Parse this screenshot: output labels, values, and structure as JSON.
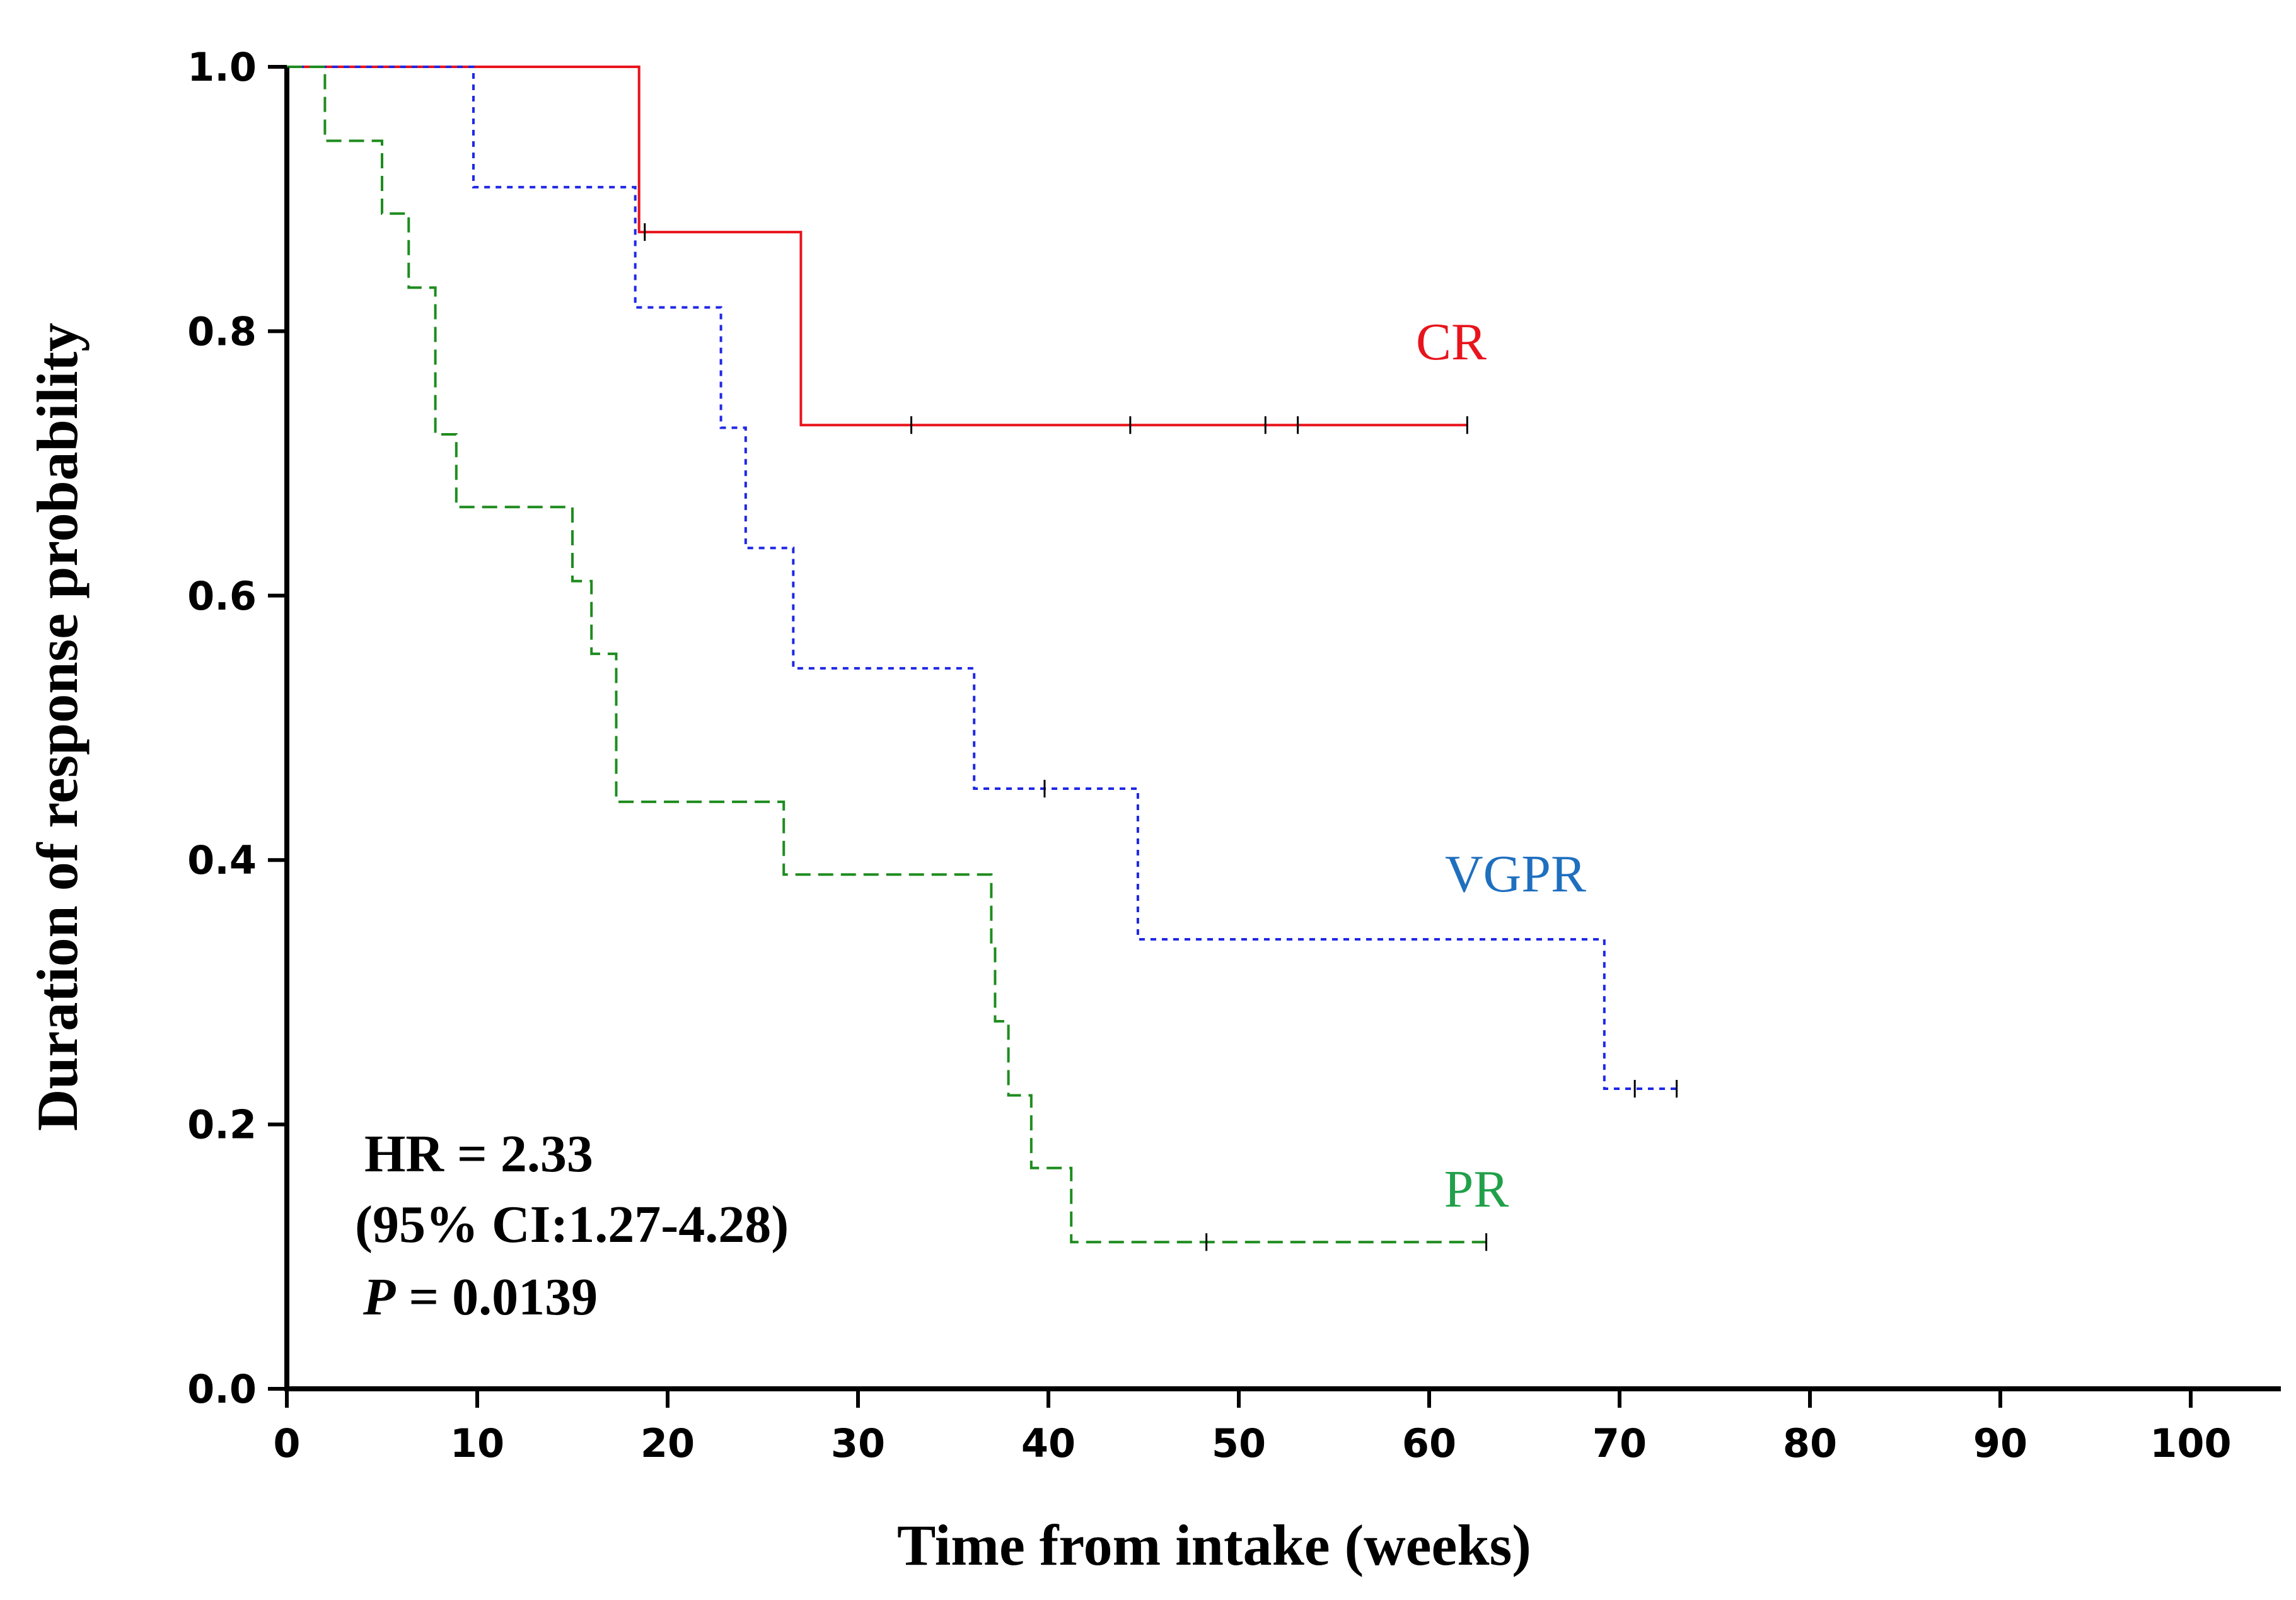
{
  "chart_data": {
    "type": "line",
    "subtype": "kaplan-meier step",
    "xlabel": "Time from intake (weeks)",
    "ylabel": "Duration of response probability",
    "xlim": [
      0,
      105
    ],
    "ylim": [
      0,
      1.0
    ],
    "x_ticks": [
      0,
      10,
      20,
      30,
      40,
      50,
      60,
      70,
      80,
      90,
      100
    ],
    "y_ticks": [
      0.0,
      0.2,
      0.4,
      0.6,
      0.8,
      1.0
    ],
    "y_tick_labels": [
      "0.0",
      "0.2",
      "0.4",
      "0.6",
      "0.8",
      "1.0"
    ],
    "grid": false,
    "legend": "inline labels",
    "series": [
      {
        "name": "CR",
        "color": "#e8141c",
        "line_style": "solid",
        "steps": [
          [
            0,
            1.0
          ],
          [
            18.5,
            0.875
          ],
          [
            27,
            0.729
          ]
        ],
        "end_x": 62,
        "censored": [
          [
            18.8,
            0.875
          ],
          [
            32.8,
            0.729
          ],
          [
            44.3,
            0.729
          ],
          [
            51.4,
            0.729
          ],
          [
            53.1,
            0.729
          ],
          [
            62,
            0.729
          ]
        ]
      },
      {
        "name": "VGPR",
        "color": "#1f28e6",
        "label_color": "#1f6fbf",
        "line_style": "dotted",
        "steps": [
          [
            0,
            1.0
          ],
          [
            9.8,
            0.909
          ],
          [
            18.3,
            0.818
          ],
          [
            22.8,
            0.727
          ],
          [
            24.1,
            0.636
          ],
          [
            26.6,
            0.545
          ],
          [
            36.1,
            0.454
          ],
          [
            44.7,
            0.34
          ],
          [
            69.2,
            0.227
          ]
        ],
        "end_x": 73,
        "censored": [
          [
            39.8,
            0.454
          ],
          [
            70.8,
            0.227
          ],
          [
            73,
            0.227
          ]
        ]
      },
      {
        "name": "PR",
        "color": "#1e8c1e",
        "label_color": "#21a04a",
        "line_style": "dashed",
        "steps": [
          [
            0,
            1.0
          ],
          [
            2.0,
            0.944
          ],
          [
            5.0,
            0.889
          ],
          [
            6.4,
            0.833
          ],
          [
            7.8,
            0.722
          ],
          [
            8.9,
            0.667
          ],
          [
            15.0,
            0.611
          ],
          [
            16.0,
            0.556
          ],
          [
            17.3,
            0.444
          ],
          [
            26.1,
            0.389
          ],
          [
            37.0,
            0.333
          ],
          [
            37.2,
            0.278
          ],
          [
            37.9,
            0.222
          ],
          [
            39.1,
            0.167
          ],
          [
            41.2,
            0.111
          ]
        ],
        "end_x": 63,
        "censored": [
          [
            48.3,
            0.111
          ],
          [
            63,
            0.111
          ]
        ]
      }
    ],
    "annotations": {
      "hr": "HR = 2.33",
      "ci": "(95% CI:1.27-4.28)",
      "p_symbol": "P",
      "p_value": " = 0.0139"
    }
  }
}
